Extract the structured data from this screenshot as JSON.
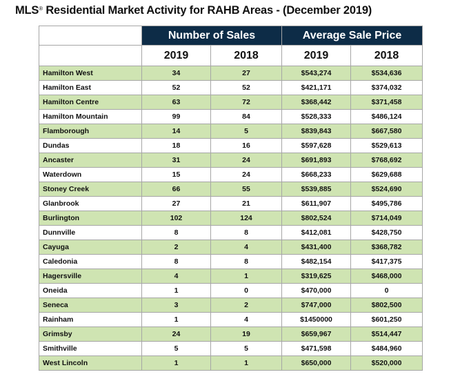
{
  "title": {
    "prefix": "MLS",
    "reg": "®",
    "rest": " Residential Market Activity for RAHB Areas - (December 2019)"
  },
  "headers": {
    "sales": "Number of Sales",
    "price": "Average Sale Price",
    "y2019": "2019",
    "y2018": "2018"
  },
  "colors": {
    "header_bg": "#0d2c47",
    "stripe": "#cfe4b2"
  },
  "rows": [
    [
      "Hamilton West",
      "34",
      "27",
      "$543,274",
      "$534,636"
    ],
    [
      "Hamilton East",
      "52",
      "52",
      "$421,171",
      "$374,032"
    ],
    [
      "Hamilton Centre",
      "63",
      "72",
      "$368,442",
      "$371,458"
    ],
    [
      "Hamilton Mountain",
      "99",
      "84",
      "$528,333",
      "$486,124"
    ],
    [
      "Flamborough",
      "14",
      "5",
      "$839,843",
      "$667,580"
    ],
    [
      "Dundas",
      "18",
      "16",
      "$597,628",
      "$529,613"
    ],
    [
      "Ancaster",
      "31",
      "24",
      "$691,893",
      "$768,692"
    ],
    [
      "Waterdown",
      "15",
      "24",
      "$668,233",
      "$629,688"
    ],
    [
      "Stoney Creek",
      "66",
      "55",
      "$539,885",
      "$524,690"
    ],
    [
      "Glanbrook",
      "27",
      "21",
      "$611,907",
      "$495,786"
    ],
    [
      "Burlington",
      "102",
      "124",
      "$802,524",
      "$714,049"
    ],
    [
      "Dunnville",
      "8",
      "8",
      "$412,081",
      "$428,750"
    ],
    [
      "Cayuga",
      "2",
      "4",
      "$431,400",
      "$368,782"
    ],
    [
      "Caledonia",
      "8",
      "8",
      "$482,154",
      "$417,375"
    ],
    [
      "Hagersville",
      "4",
      "1",
      "$319,625",
      "$468,000"
    ],
    [
      "Oneida",
      "1",
      "0",
      "$470,000",
      "0"
    ],
    [
      "Seneca",
      "3",
      "2",
      "$747,000",
      "$802,500"
    ],
    [
      "Rainham",
      "1",
      "4",
      "$1450000",
      "$601,250"
    ],
    [
      "Grimsby",
      "24",
      "19",
      "$659,967",
      "$514,447"
    ],
    [
      "Smithville",
      "5",
      "5",
      "$471,598",
      "$484,960"
    ],
    [
      "West Lincoln",
      "1",
      "1",
      "$650,000",
      "$520,000"
    ]
  ]
}
